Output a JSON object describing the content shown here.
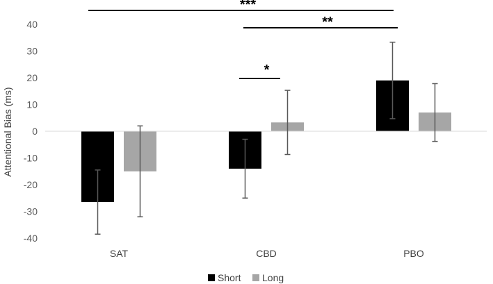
{
  "chart_data": {
    "type": "bar",
    "title": "",
    "xlabel": "",
    "ylabel": "Attentional Bias (ms)",
    "ylim": [
      -40,
      40
    ],
    "yticks": [
      40,
      30,
      20,
      10,
      0,
      -10,
      -20,
      -30,
      -40
    ],
    "grid": false,
    "legend_position": "bottom",
    "categories": [
      "SAT",
      "CBD",
      "PBO"
    ],
    "series": [
      {
        "name": "Short",
        "color": "#000000",
        "values": [
          -26.5,
          -14,
          19
        ],
        "errors": [
          12,
          11,
          14.3
        ]
      },
      {
        "name": "Long",
        "color": "#a6a6a6",
        "values": [
          -15,
          3.3,
          7
        ],
        "errors": [
          17,
          12,
          10.8
        ]
      }
    ],
    "annotations": [
      {
        "label": "***",
        "from": "SAT",
        "to": "PBO"
      },
      {
        "label": "**",
        "from": "CBD",
        "to": "PBO"
      },
      {
        "label": "*",
        "from": "CBD Short",
        "to": "CBD Long"
      }
    ]
  }
}
